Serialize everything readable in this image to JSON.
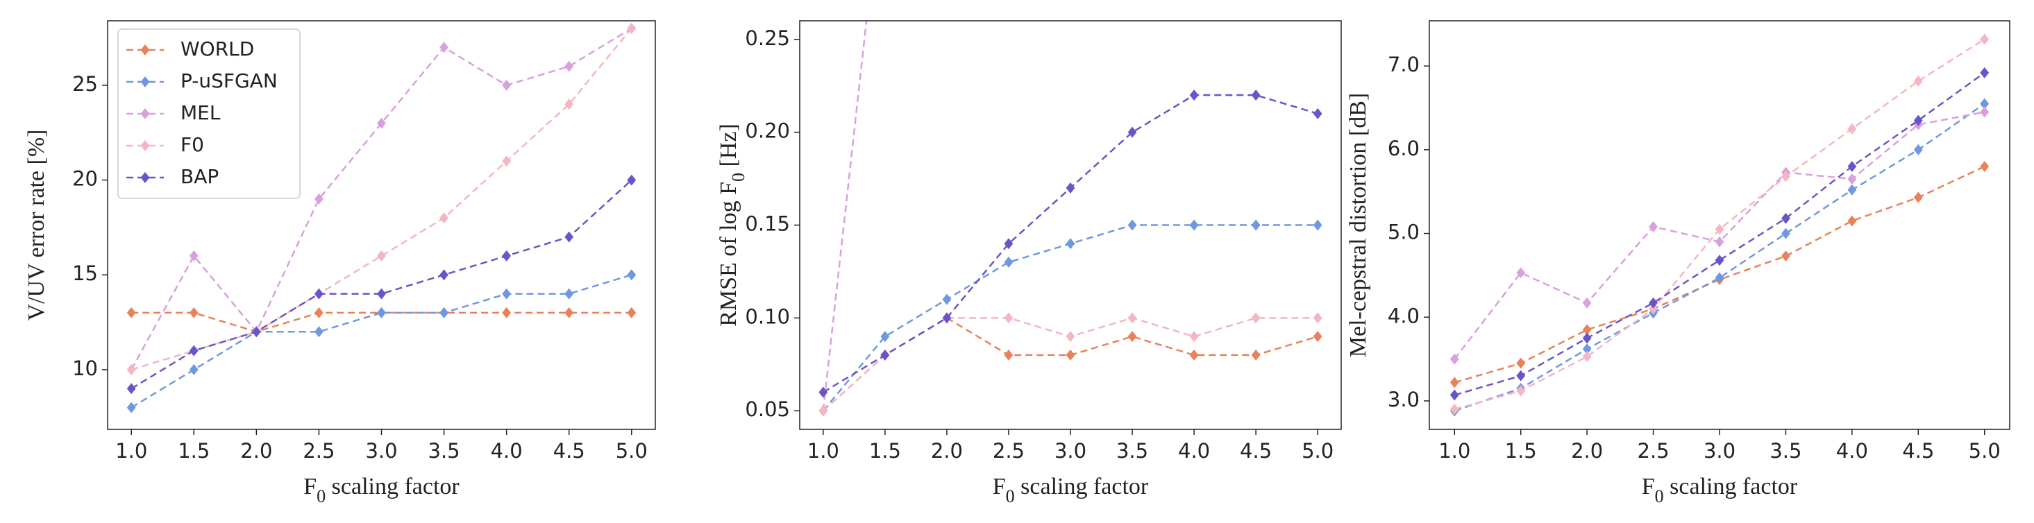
{
  "chart_data": [
    {
      "type": "line",
      "xlabel": [
        "F",
        "0",
        " scaling factor"
      ],
      "ylabel": [
        "V/UV error rate [%]"
      ],
      "legend": "upper left",
      "x": [
        1.0,
        1.5,
        2.0,
        2.5,
        3.0,
        3.5,
        4.0,
        4.5,
        5.0
      ],
      "xlim": [
        0.81,
        5.19
      ],
      "xticks": [
        {
          "value": 1,
          "label": "1.0"
        },
        1.5,
        {
          "value": 2,
          "label": "2.0"
        },
        2.5,
        {
          "value": 3,
          "label": "3.0"
        },
        3.5,
        {
          "value": 4,
          "label": "4.0"
        },
        4.5,
        {
          "value": 5,
          "label": "5.0"
        }
      ],
      "ylim": [
        6.85,
        28.4
      ],
      "yticks": [
        10,
        15,
        20,
        25
      ],
      "series": [
        {
          "name": "WORLD",
          "color": "#e8825a",
          "values": [
            13,
            13,
            12,
            13,
            13,
            13,
            13,
            13,
            13
          ]
        },
        {
          "name": "P-uSFGAN",
          "color": "#6f98e0",
          "values": [
            8,
            10,
            12,
            12,
            13,
            13,
            14,
            14,
            15
          ]
        },
        {
          "name": "MEL",
          "color": "#d9a0de",
          "values": [
            10,
            16,
            12,
            19,
            23,
            27,
            25,
            26,
            28
          ]
        },
        {
          "name": "F0",
          "color": "#f4b6c0",
          "values": [
            10,
            11,
            12,
            14,
            16,
            18,
            21,
            24,
            28
          ]
        },
        {
          "name": "BAP",
          "color": "#6a55c8",
          "values": [
            9,
            11,
            12,
            14,
            14,
            15,
            16,
            17,
            20
          ]
        }
      ]
    },
    {
      "type": "line",
      "xlabel": [
        "F",
        "0",
        " scaling factor"
      ],
      "ylabel": [
        "RMSE of  log F",
        "0",
        " [Hz]"
      ],
      "x": [
        1.0,
        1.5,
        2.0,
        2.5,
        3.0,
        3.5,
        4.0,
        4.5,
        5.0
      ],
      "xlim": [
        0.81,
        5.19
      ],
      "xticks": [
        {
          "value": 1,
          "label": "1.0"
        },
        1.5,
        {
          "value": 2,
          "label": "2.0"
        },
        2.5,
        {
          "value": 3,
          "label": "3.0"
        },
        3.5,
        {
          "value": 4,
          "label": "4.0"
        },
        4.5,
        {
          "value": 5,
          "label": "5.0"
        }
      ],
      "ylim": [
        0.04,
        0.26
      ],
      "yticks": [
        0.05,
        {
          "value": 0.1,
          "label": "0.10"
        },
        0.15,
        {
          "value": 0.2,
          "label": "0.20"
        },
        0.25
      ],
      "series": [
        {
          "name": "WORLD",
          "color": "#e8825a",
          "values": [
            0.05,
            0.08,
            0.1,
            0.08,
            0.08,
            0.09,
            0.08,
            0.08,
            0.09
          ]
        },
        {
          "name": "P-uSFGAN",
          "color": "#6f98e0",
          "values": [
            0.05,
            0.09,
            0.11,
            0.13,
            0.14,
            0.15,
            0.15,
            0.15,
            0.15
          ]
        },
        {
          "name": "MEL",
          "color": "#d9a0de",
          "values": [
            0.05,
            0.35,
            null,
            null,
            null,
            null,
            null,
            null,
            null
          ]
        },
        {
          "name": "F0",
          "color": "#f4b6c0",
          "values": [
            0.05,
            0.08,
            0.1,
            0.1,
            0.09,
            0.1,
            0.09,
            0.1,
            0.1
          ]
        },
        {
          "name": "BAP",
          "color": "#6a55c8",
          "values": [
            0.06,
            0.08,
            0.1,
            0.14,
            0.17,
            0.2,
            0.22,
            0.22,
            0.21
          ]
        }
      ]
    },
    {
      "type": "line",
      "xlabel": [
        "F",
        "0",
        " scaling factor"
      ],
      "ylabel": [
        "Mel-cepstral  distortion [dB]"
      ],
      "x": [
        1.0,
        1.5,
        2.0,
        2.5,
        3.0,
        3.5,
        4.0,
        4.5,
        5.0
      ],
      "xlim": [
        0.81,
        5.19
      ],
      "xticks": [
        {
          "value": 1,
          "label": "1.0"
        },
        1.5,
        {
          "value": 2,
          "label": "2.0"
        },
        2.5,
        {
          "value": 3,
          "label": "3.0"
        },
        3.5,
        {
          "value": 4,
          "label": "4.0"
        },
        4.5,
        {
          "value": 5,
          "label": "5.0"
        }
      ],
      "ylim": [
        2.66,
        7.54
      ],
      "yticks": [
        {
          "value": 3,
          "label": "3.0"
        },
        {
          "value": 4,
          "label": "4.0"
        },
        {
          "value": 5,
          "label": "5.0"
        },
        {
          "value": 6,
          "label": "6.0"
        },
        {
          "value": 7,
          "label": "7.0"
        }
      ],
      "series": [
        {
          "name": "WORLD",
          "color": "#e8825a",
          "values": [
            3.22,
            3.45,
            3.85,
            4.1,
            4.45,
            4.73,
            5.15,
            5.43,
            5.8
          ]
        },
        {
          "name": "P-uSFGAN",
          "color": "#6f98e0",
          "values": [
            2.88,
            3.15,
            3.62,
            4.05,
            4.47,
            5.0,
            5.52,
            6.0,
            6.55
          ]
        },
        {
          "name": "MEL",
          "color": "#d9a0de",
          "values": [
            3.5,
            4.53,
            4.17,
            5.08,
            4.9,
            5.73,
            5.65,
            6.3,
            6.45
          ]
        },
        {
          "name": "F0",
          "color": "#f4b6c0",
          "values": [
            2.9,
            3.12,
            3.53,
            4.1,
            5.05,
            5.68,
            6.25,
            6.82,
            7.32
          ]
        },
        {
          "name": "BAP",
          "color": "#6a55c8",
          "values": [
            3.07,
            3.3,
            3.75,
            4.17,
            4.68,
            5.18,
            5.8,
            6.35,
            6.92
          ]
        }
      ]
    }
  ]
}
